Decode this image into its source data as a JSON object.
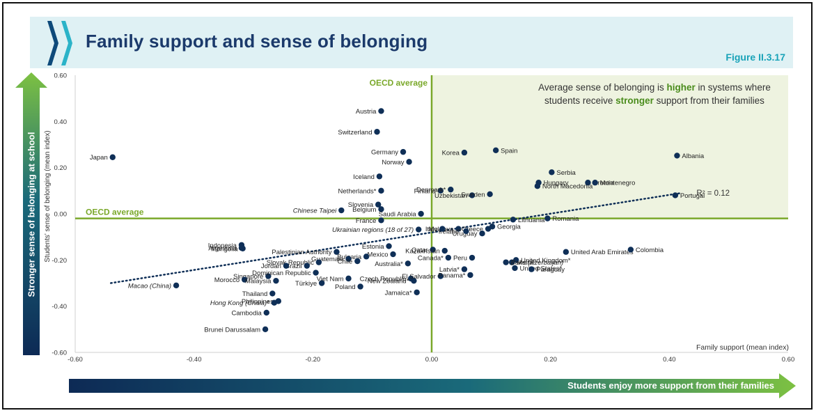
{
  "header": {
    "title": "Family support and sense of belonging",
    "figure_label": "Figure II.3.17"
  },
  "arrows": {
    "y_label": "Stronger sense of belonging at school",
    "x_label": "Students enjoy more support from their families"
  },
  "annotation": {
    "line1_before": "Average sense of belonging is ",
    "line1_highlight": "higher",
    "line1_after": " in systems where",
    "line2_before": "students receive ",
    "line2_highlight": "stronger",
    "line2_after": " support from their families"
  },
  "colors": {
    "dot": "#0f2f57",
    "reference_line": "#7aa82a",
    "quadrant_fill": "#eef3e0",
    "title": "#1b3a6b",
    "figure_label": "#19a3b8"
  },
  "chart_data": {
    "type": "scatter",
    "xlabel": "Family support (mean index)",
    "ylabel": "Students' sense of belonging (mean index)",
    "xlim": [
      -0.6,
      0.6
    ],
    "ylim": [
      -0.6,
      0.6
    ],
    "x_ticks": [
      "-0.60",
      "-0.40",
      "-0.20",
      "0.00",
      "0.20",
      "0.40",
      "0.60"
    ],
    "y_ticks": [
      "0.60",
      "0.40",
      "0.20",
      "0.00",
      "-0.20",
      "-0.40",
      "-0.60"
    ],
    "reference_lines": {
      "x": 0.0,
      "y": -0.02,
      "x_label": "OECD average",
      "y_label": "OECD average"
    },
    "trendline": {
      "x1": -0.54,
      "y1": -0.3,
      "x2": 0.42,
      "y2": 0.09,
      "label": "R² = 0.12"
    },
    "points": [
      {
        "name": "Austria",
        "x": -0.085,
        "y": 0.445
      },
      {
        "name": "Switzerland",
        "x": -0.092,
        "y": 0.355
      },
      {
        "name": "Japan",
        "x": -0.537,
        "y": 0.245
      },
      {
        "name": "Germany",
        "x": -0.048,
        "y": 0.268
      },
      {
        "name": "Norway",
        "x": -0.038,
        "y": 0.225
      },
      {
        "name": "Iceland",
        "x": -0.088,
        "y": 0.162
      },
      {
        "name": "Netherlands*",
        "x": -0.085,
        "y": 0.1
      },
      {
        "name": "Slovenia",
        "x": -0.09,
        "y": 0.04
      },
      {
        "name": "Belgium",
        "x": -0.085,
        "y": 0.02
      },
      {
        "name": "Chinese Taipei",
        "x": -0.152,
        "y": 0.015
      },
      {
        "name": "Saudi Arabia",
        "x": -0.018,
        "y": 0.0
      },
      {
        "name": "France",
        "x": -0.085,
        "y": -0.028
      },
      {
        "name": "Korea",
        "x": 0.055,
        "y": 0.265
      },
      {
        "name": "Spain",
        "x": 0.108,
        "y": 0.275
      },
      {
        "name": "Albania",
        "x": 0.413,
        "y": 0.252
      },
      {
        "name": "Serbia",
        "x": 0.202,
        "y": 0.18
      },
      {
        "name": "Croatia",
        "x": 0.263,
        "y": 0.135
      },
      {
        "name": "Montenegro",
        "x": 0.275,
        "y": 0.135
      },
      {
        "name": "Hungary",
        "x": 0.18,
        "y": 0.135
      },
      {
        "name": "Finland",
        "x": 0.015,
        "y": 0.1
      },
      {
        "name": "Denmark*",
        "x": 0.032,
        "y": 0.105
      },
      {
        "name": "Uzbekistan",
        "x": 0.068,
        "y": 0.08
      },
      {
        "name": "Sweden",
        "x": 0.098,
        "y": 0.085
      },
      {
        "name": "North Macedonia",
        "x": 0.178,
        "y": 0.12
      },
      {
        "name": "Portugal",
        "x": 0.41,
        "y": 0.08
      },
      {
        "name": "Lithuania",
        "x": 0.137,
        "y": -0.025
      },
      {
        "name": "Romania",
        "x": 0.195,
        "y": -0.02
      },
      {
        "name": "Moldova",
        "x": 0.045,
        "y": -0.065
      },
      {
        "name": "Georgia",
        "x": 0.102,
        "y": -0.055
      },
      {
        "name": "Greece",
        "x": 0.095,
        "y": -0.065
      },
      {
        "name": "Uruguay",
        "x": 0.085,
        "y": -0.085
      },
      {
        "name": "Ireland*",
        "x": 0.058,
        "y": -0.075
      },
      {
        "name": "Italy",
        "x": 0.018,
        "y": -0.065
      },
      {
        "name": "Ukrainian regions (18 of 27)",
        "x": -0.022,
        "y": -0.068
      },
      {
        "name": "Estonia",
        "x": -0.072,
        "y": -0.14
      },
      {
        "name": "Qatar",
        "x": 0.002,
        "y": -0.155
      },
      {
        "name": "Kazakhstan",
        "x": 0.022,
        "y": -0.16
      },
      {
        "name": "Peru",
        "x": 0.068,
        "y": -0.19
      },
      {
        "name": "Latvia*",
        "x": 0.055,
        "y": -0.24
      },
      {
        "name": "Indonesia",
        "x": -0.32,
        "y": -0.135
      },
      {
        "name": "Mongolia",
        "x": -0.318,
        "y": -0.15
      },
      {
        "name": "Argentina",
        "x": -0.32,
        "y": -0.148
      },
      {
        "name": "Mexico",
        "x": -0.065,
        "y": -0.175
      },
      {
        "name": "Bulgaria",
        "x": -0.11,
        "y": -0.185
      },
      {
        "name": "Guatemala",
        "x": -0.14,
        "y": -0.195
      },
      {
        "name": "Palestinian Authority",
        "x": -0.16,
        "y": -0.165
      },
      {
        "name": "Slovak Republic",
        "x": -0.19,
        "y": -0.21
      },
      {
        "name": "Chile",
        "x": -0.125,
        "y": -0.205
      },
      {
        "name": "Brazil",
        "x": -0.21,
        "y": -0.225
      },
      {
        "name": "Jordan",
        "x": -0.245,
        "y": -0.225
      },
      {
        "name": "Singapore",
        "x": -0.275,
        "y": -0.27
      },
      {
        "name": "Dominican Republic",
        "x": -0.195,
        "y": -0.255
      },
      {
        "name": "Australia*",
        "x": -0.04,
        "y": -0.215
      },
      {
        "name": "Morocco",
        "x": -0.315,
        "y": -0.285
      },
      {
        "name": "Malaysia",
        "x": -0.262,
        "y": -0.29
      },
      {
        "name": "Macao (China)",
        "x": -0.43,
        "y": -0.31
      },
      {
        "name": "Thailand",
        "x": -0.268,
        "y": -0.345
      },
      {
        "name": "Philippines",
        "x": -0.258,
        "y": -0.378
      },
      {
        "name": "Hong Kong (China)*",
        "x": -0.265,
        "y": -0.385
      },
      {
        "name": "Cambodia",
        "x": -0.278,
        "y": -0.428
      },
      {
        "name": "Brunei Darussalam",
        "x": -0.28,
        "y": -0.5
      },
      {
        "name": "Türkiye",
        "x": -0.185,
        "y": -0.3
      },
      {
        "name": "Viet Nam",
        "x": -0.14,
        "y": -0.28
      },
      {
        "name": "Poland",
        "x": -0.12,
        "y": -0.315
      },
      {
        "name": "Czech Republic",
        "x": -0.035,
        "y": -0.28
      },
      {
        "name": "New Zealand*",
        "x": -0.03,
        "y": -0.29
      },
      {
        "name": "Jamaica*",
        "x": -0.025,
        "y": -0.34
      },
      {
        "name": "El Salvador",
        "x": 0.015,
        "y": -0.27
      },
      {
        "name": "Canada*",
        "x": 0.028,
        "y": -0.19
      },
      {
        "name": "Panama*",
        "x": 0.065,
        "y": -0.265
      },
      {
        "name": "United States*",
        "x": 0.14,
        "y": -0.235
      },
      {
        "name": "Malta",
        "x": 0.135,
        "y": -0.21
      },
      {
        "name": "Paraguay",
        "x": 0.168,
        "y": -0.24
      },
      {
        "name": "United Kingdom*",
        "x": 0.142,
        "y": -0.2
      },
      {
        "name": "United Arab Emirates",
        "x": 0.226,
        "y": -0.165
      },
      {
        "name": "Colombia",
        "x": 0.335,
        "y": -0.155
      },
      {
        "name": "Baku (Azerbaijan)",
        "x": 0.125,
        "y": -0.21
      }
    ]
  }
}
